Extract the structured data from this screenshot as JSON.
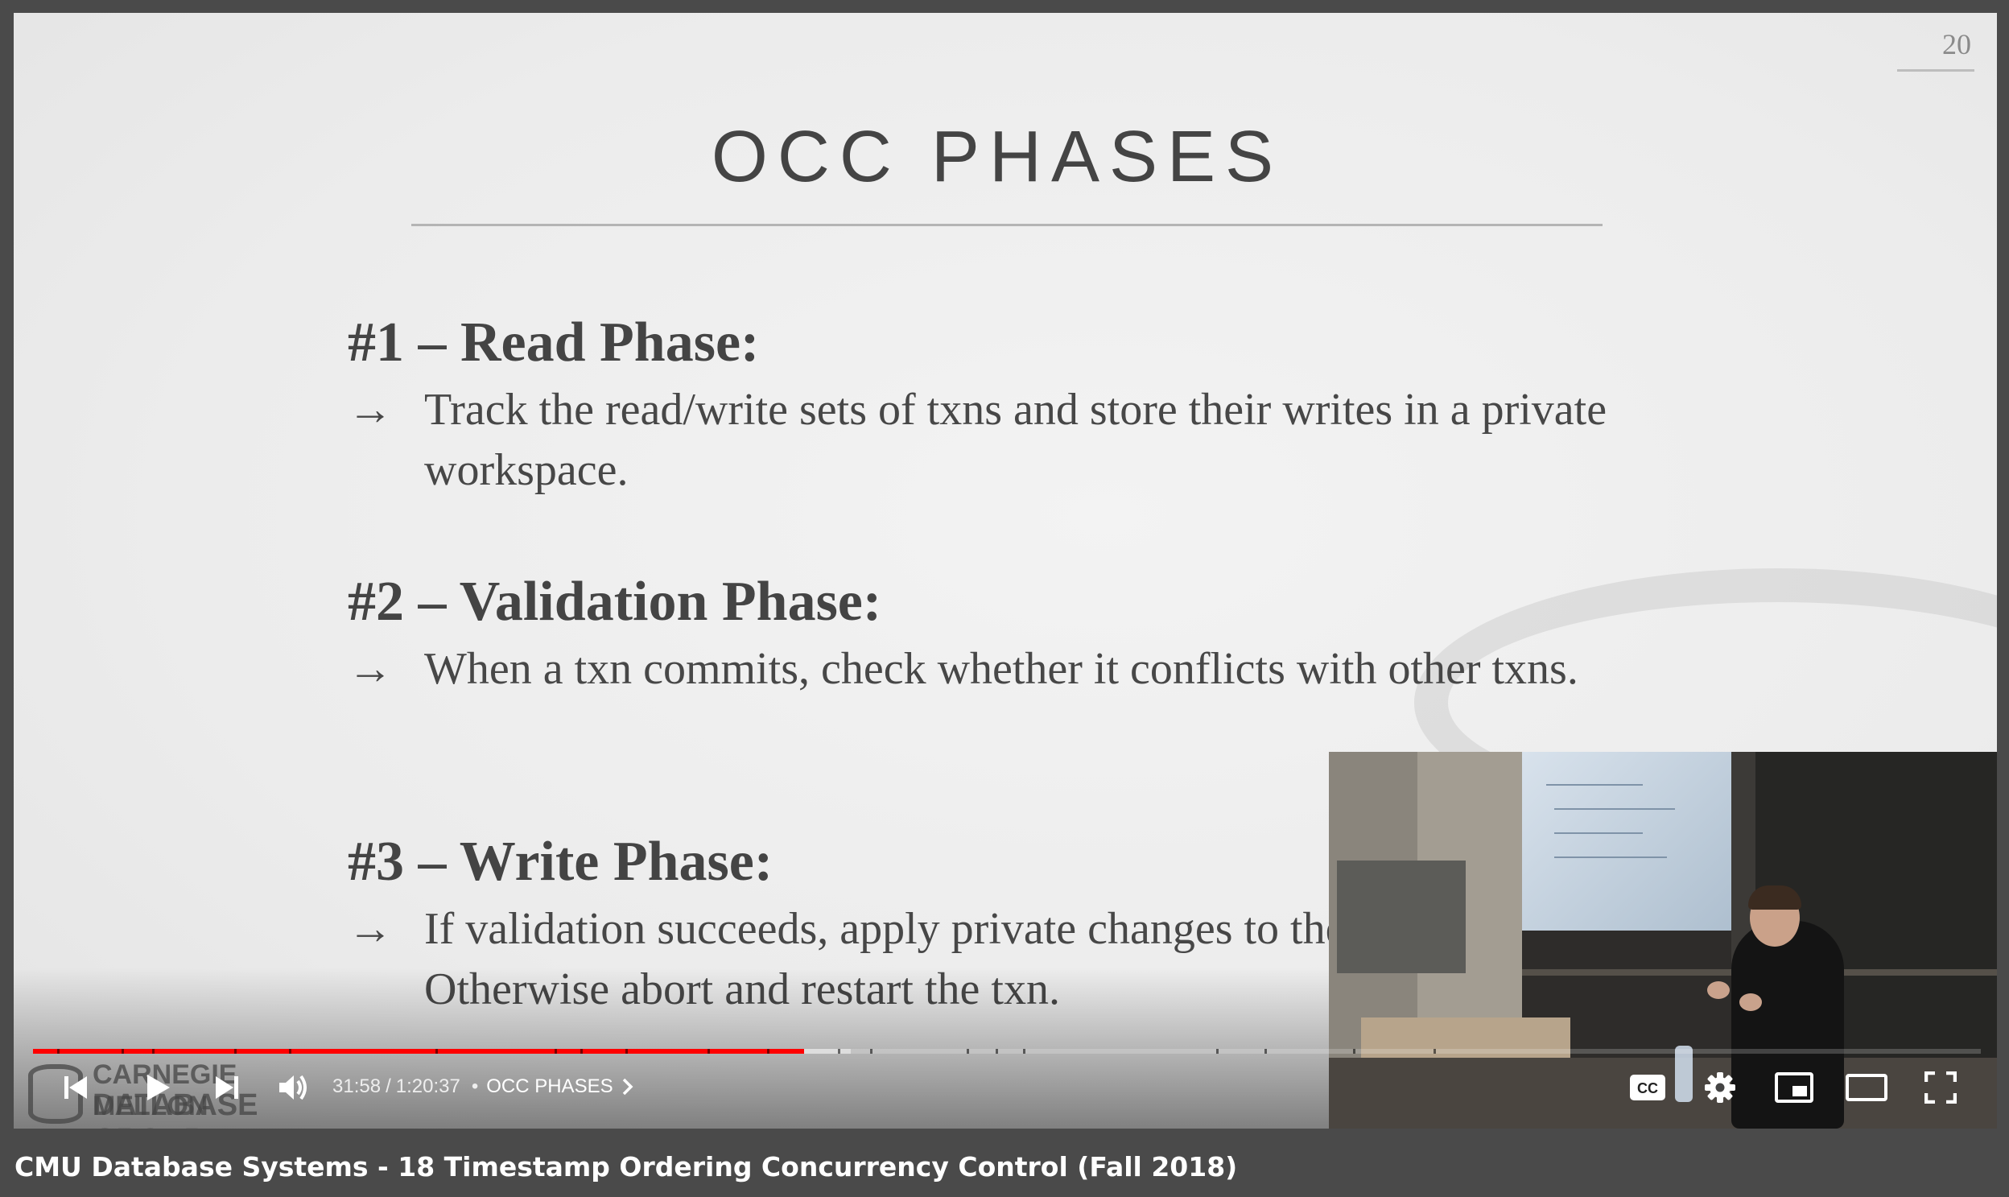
{
  "slide": {
    "page_number": "20",
    "title": "OCC PHASES",
    "phases": [
      {
        "head": "#1 – Read Phase:",
        "arrow": "→",
        "desc": "Track the read/write sets of txns and store their writes in a private workspace."
      },
      {
        "head": "#2 – Validation Phase:",
        "arrow": "→",
        "desc": "When a txn commits, check whether it conflicts with other txns."
      },
      {
        "head": "#3 – Write Phase:",
        "arrow": "→",
        "desc": "If validation succeeds, apply private changes to the database. Otherwise abort and restart the txn."
      }
    ],
    "watermark": {
      "line1": "CARNEGIE MELLON",
      "line2": "DATABASE GROUP"
    }
  },
  "player": {
    "current_time": "31:58",
    "separator": "/",
    "duration": "1:20:37",
    "bullet": "•",
    "chapter": "OCC PHASES",
    "progress_played_fraction": 0.396,
    "progress_buffered_fraction": 0.42,
    "accent_color": "#ff0000",
    "icons": [
      "previous-icon",
      "play-icon",
      "next-icon",
      "volume-icon",
      "captions-icon",
      "settings-icon",
      "miniplayer-icon",
      "theater-icon",
      "fullscreen-icon"
    ]
  },
  "video": {
    "title": "CMU Database Systems - 18 Timestamp Ordering Concurrency Control (Fall 2018)"
  }
}
